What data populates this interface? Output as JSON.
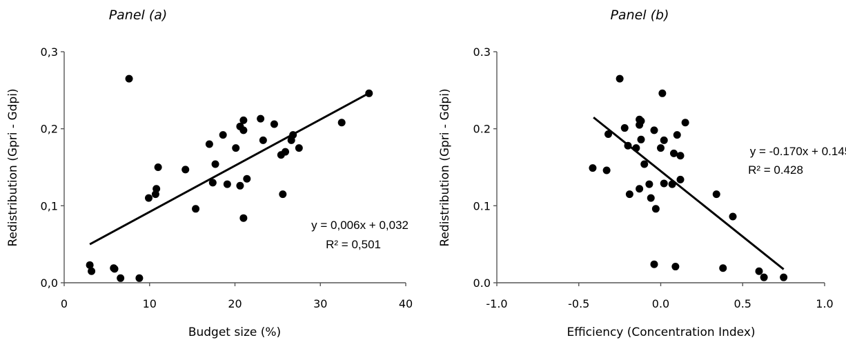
{
  "chart_data": [
    {
      "type": "scatter",
      "title": "Panel (a)",
      "xlabel": "Budget size (%)",
      "ylabel": "Redistribution (Gpri - Gdpi)",
      "xlim": [
        0,
        40
      ],
      "ylim": [
        0,
        0.3
      ],
      "xticks": [
        "0",
        "10",
        "20",
        "30",
        "40"
      ],
      "yticks": [
        "0,0",
        "0,1",
        "0,2",
        "0,3"
      ],
      "grid": false,
      "points": [
        [
          3.0,
          0.023
        ],
        [
          3.2,
          0.015
        ],
        [
          5.8,
          0.019
        ],
        [
          5.9,
          0.018
        ],
        [
          6.6,
          0.006
        ],
        [
          8.8,
          0.006
        ],
        [
          7.6,
          0.265
        ],
        [
          9.9,
          0.11
        ],
        [
          10.7,
          0.115
        ],
        [
          10.8,
          0.122
        ],
        [
          11.0,
          0.15
        ],
        [
          14.2,
          0.147
        ],
        [
          15.4,
          0.096
        ],
        [
          17.0,
          0.18
        ],
        [
          17.4,
          0.13
        ],
        [
          17.7,
          0.154
        ],
        [
          18.6,
          0.192
        ],
        [
          19.1,
          0.128
        ],
        [
          20.1,
          0.175
        ],
        [
          20.6,
          0.203
        ],
        [
          21.0,
          0.198
        ],
        [
          21.0,
          0.211
        ],
        [
          20.6,
          0.126
        ],
        [
          21.4,
          0.135
        ],
        [
          21.0,
          0.084
        ],
        [
          23.0,
          0.213
        ],
        [
          23.3,
          0.185
        ],
        [
          24.6,
          0.206
        ],
        [
          25.4,
          0.166
        ],
        [
          25.9,
          0.17
        ],
        [
          25.6,
          0.115
        ],
        [
          26.6,
          0.185
        ],
        [
          26.8,
          0.192
        ],
        [
          27.5,
          0.175
        ],
        [
          32.5,
          0.208
        ],
        [
          35.7,
          0.246
        ]
      ],
      "trendline": {
        "slope": 0.006,
        "intercept": 0.032,
        "x_range": [
          3.0,
          35.7
        ]
      },
      "annotations": [
        "y = 0,006x + 0,032",
        "R² = 0,501"
      ]
    },
    {
      "type": "scatter",
      "title": "Panel (b)",
      "xlabel": "Efficiency (Concentration Index)",
      "ylabel": "Redistribution (Gpri - Gdpi)",
      "xlim": [
        -1.0,
        1.0
      ],
      "ylim": [
        0,
        0.3
      ],
      "xticks": [
        "-1.0",
        "-0.5",
        "0.0",
        "0.5",
        "1.0"
      ],
      "yticks": [
        "0.0",
        "0.1",
        "0.2",
        "0.3"
      ],
      "grid": false,
      "points": [
        [
          -0.415,
          0.149
        ],
        [
          -0.33,
          0.146
        ],
        [
          -0.32,
          0.193
        ],
        [
          -0.25,
          0.265
        ],
        [
          -0.22,
          0.201
        ],
        [
          -0.2,
          0.178
        ],
        [
          -0.19,
          0.115
        ],
        [
          -0.15,
          0.175
        ],
        [
          -0.13,
          0.212
        ],
        [
          -0.13,
          0.205
        ],
        [
          -0.12,
          0.21
        ],
        [
          -0.12,
          0.186
        ],
        [
          -0.13,
          0.122
        ],
        [
          -0.1,
          0.154
        ],
        [
          -0.07,
          0.128
        ],
        [
          -0.06,
          0.11
        ],
        [
          -0.04,
          0.198
        ],
        [
          -0.03,
          0.096
        ],
        [
          -0.04,
          0.024
        ],
        [
          0.0,
          0.175
        ],
        [
          0.01,
          0.246
        ],
        [
          0.02,
          0.185
        ],
        [
          0.02,
          0.129
        ],
        [
          0.07,
          0.128
        ],
        [
          0.08,
          0.168
        ],
        [
          0.1,
          0.192
        ],
        [
          0.09,
          0.021
        ],
        [
          0.12,
          0.165
        ],
        [
          0.12,
          0.134
        ],
        [
          0.15,
          0.208
        ],
        [
          0.34,
          0.115
        ],
        [
          0.38,
          0.019
        ],
        [
          0.44,
          0.086
        ],
        [
          0.6,
          0.015
        ],
        [
          0.63,
          0.007
        ],
        [
          0.75,
          0.007
        ]
      ],
      "trendline": {
        "slope": -0.17,
        "intercept": 0.145,
        "x_range": [
          -0.41,
          0.75
        ]
      },
      "annotations": [
        "y = -0.170x + 0.145",
        "R² = 0.428"
      ]
    }
  ]
}
